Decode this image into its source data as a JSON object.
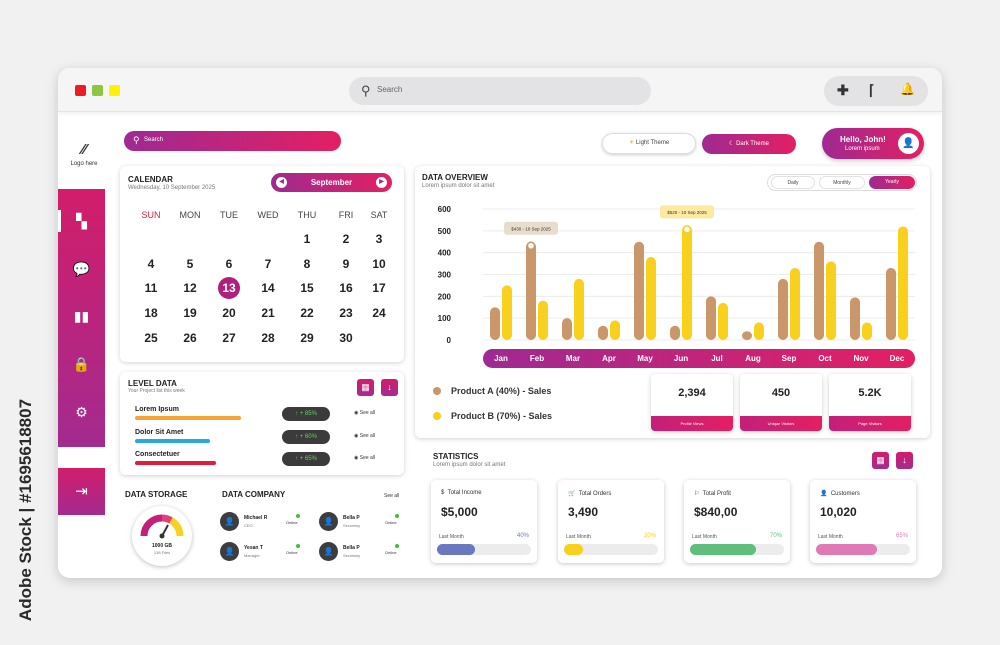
{
  "titlebar": {
    "search_placeholder": "Search",
    "dot_colors": [
      "#ed1c24",
      "#8dc63f",
      "#fff200"
    ]
  },
  "sidebar": {
    "logo_label": "Logo here",
    "items": [
      "dashboard-icon",
      "chat-icon",
      "chart-icon",
      "lock-icon",
      "gear-icon"
    ],
    "logout": "logout-icon"
  },
  "header": {
    "search_placeholder": "Search",
    "light_theme": "Light Theme",
    "dark_theme": "Dark Theme",
    "greeting": "Hello, John!",
    "greeting_sub": "Lorem ipsum"
  },
  "calendar": {
    "title": "CALENDAR",
    "date": "Wednesday, 10 September 2025",
    "month": "September",
    "weekdays": [
      "SUN",
      "MON",
      "TUE",
      "WED",
      "THU",
      "FRI",
      "SAT"
    ],
    "weeks": [
      [
        "",
        "",
        "",
        "",
        "1",
        "2",
        "3"
      ],
      [
        "4",
        "5",
        "6",
        "7",
        "8",
        "9",
        "10"
      ],
      [
        "11",
        "12",
        "13",
        "14",
        "15",
        "16",
        "17"
      ],
      [
        "18",
        "19",
        "20",
        "21",
        "22",
        "23",
        "24"
      ],
      [
        "25",
        "26",
        "27",
        "28",
        "29",
        "30",
        ""
      ]
    ],
    "selected": "13"
  },
  "level_data": {
    "title": "LEVEL DATA",
    "subtitle": "Your Project list this week",
    "items": [
      {
        "label": "Lorem Ipsum",
        "pct_text": "↑ + 85%",
        "pct": 85,
        "color": "#f8a231",
        "see": "◉ See all"
      },
      {
        "label": "Dolor Sit Amet",
        "pct_text": "↑ + 60%",
        "pct": 60,
        "color": "#29a7df",
        "see": "◉ See all"
      },
      {
        "label": "Consectetuer",
        "pct_text": "↑ + 65%",
        "pct": 65,
        "color": "#e21c3c",
        "see": "◉ See all"
      }
    ]
  },
  "storage": {
    "title": "DATA STORAGE",
    "value": "1000 GB",
    "sub": "138 Files"
  },
  "company": {
    "title": "DATA COMPANY",
    "see_all": "See all",
    "people": [
      {
        "name": "Michael R",
        "role": "CEO",
        "status": "Online"
      },
      {
        "name": "Bella P",
        "role": "Secretary",
        "status": "Online"
      },
      {
        "name": "Yesan T",
        "role": "Manager",
        "status": "Online"
      },
      {
        "name": "Bella P",
        "role": "Secretary",
        "status": "Online"
      }
    ]
  },
  "overview": {
    "title": "DATA OVERVIEW",
    "subtitle": "Lorem ipsum dolor sit amet",
    "tabs": [
      "Daily",
      "Monthly",
      "Yearly"
    ],
    "active_tab": "Yearly",
    "tooltip_a": "$430 - 10 Sep 2025",
    "tooltip_b": "$520 - 10 Sep 2025",
    "legend": [
      {
        "label": "Product A (40%) - Sales",
        "color": "#c9976a"
      },
      {
        "label": "Product B (70%) - Sales",
        "color": "#f9d01c"
      }
    ],
    "stats": [
      {
        "value": "2,394",
        "label": "Profile Views"
      },
      {
        "value": "450",
        "label": "Unique Visitors"
      },
      {
        "value": "5.2K",
        "label": "Page Visitors"
      }
    ]
  },
  "chart_data": {
    "type": "bar",
    "categories": [
      "Jan",
      "Feb",
      "Mar",
      "Apr",
      "May",
      "Jun",
      "Jul",
      "Aug",
      "Sep",
      "Oct",
      "Nov",
      "Dec"
    ],
    "series": [
      {
        "name": "Product A (40%) - Sales",
        "color": "#c9976a",
        "values": [
          150,
          450,
          100,
          65,
          450,
          65,
          200,
          40,
          280,
          450,
          195,
          330
        ]
      },
      {
        "name": "Product B (70%) - Sales",
        "color": "#f9d01c",
        "values": [
          250,
          180,
          280,
          90,
          380,
          525,
          170,
          80,
          330,
          360,
          80,
          520
        ]
      }
    ],
    "yticks": [
      0,
      100,
      200,
      300,
      400,
      500,
      600
    ],
    "ylim": [
      0,
      600
    ],
    "grid": true
  },
  "statistics": {
    "title": "STATISTICS",
    "subtitle": "Lorem ipsum dolor sit amet",
    "cards": [
      {
        "icon": "$",
        "label": "Total Income",
        "value": "$5,000",
        "last": "Last Month",
        "pct_text": "40%",
        "pct": 40,
        "color": "#6a78c0"
      },
      {
        "icon": "🛒",
        "label": "Total Orders",
        "value": "3,490",
        "last": "Last Month",
        "pct_text": "20%",
        "pct": 20,
        "color": "#f9d01c"
      },
      {
        "icon": "⚐",
        "label": "Total Profit",
        "value": "$840,00",
        "last": "Last Month",
        "pct_text": "70%",
        "pct": 70,
        "color": "#5fbf7a"
      },
      {
        "icon": "👤",
        "label": "Customers",
        "value": "10,020",
        "last": "Last Month",
        "pct_text": "65%",
        "pct": 65,
        "color": "#e07ab7"
      }
    ]
  },
  "watermark": "Adobe Stock | #1695618807"
}
